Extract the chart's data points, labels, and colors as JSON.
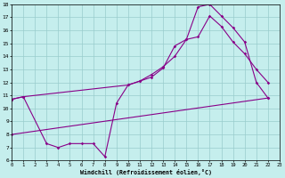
{
  "bg_color": "#c5eeed",
  "line_color": "#880088",
  "grid_color": "#99cccc",
  "xlabel": "Windchill (Refroidissement éolien,°C)",
  "xlim": [
    0,
    23
  ],
  "ylim": [
    6,
    18
  ],
  "line1_x": [
    0,
    1,
    3,
    4,
    5,
    6,
    7,
    8,
    9,
    10,
    11,
    12,
    13,
    14,
    15,
    16,
    17,
    18,
    19,
    20,
    21,
    22
  ],
  "line1_y": [
    10.7,
    10.9,
    7.3,
    7.0,
    7.3,
    7.3,
    7.3,
    6.3,
    10.4,
    11.8,
    12.1,
    12.4,
    13.1,
    14.8,
    15.3,
    17.8,
    18.0,
    17.1,
    16.2,
    15.1,
    12.0,
    10.8
  ],
  "line2_x": [
    0,
    1,
    10,
    11,
    12,
    13,
    14,
    15,
    16,
    17,
    18,
    19,
    20,
    21,
    22
  ],
  "line2_y": [
    10.7,
    10.9,
    11.8,
    12.1,
    12.6,
    13.2,
    14.0,
    15.3,
    15.5,
    17.1,
    16.3,
    15.1,
    14.2,
    13.0,
    12.0
  ],
  "line3_x": [
    0,
    22
  ],
  "line3_y": [
    8.0,
    10.8
  ],
  "xtick_fontsize": 4.0,
  "ytick_fontsize": 4.5,
  "xlabel_fontsize": 4.8,
  "marker_size": 1.8,
  "line_width": 0.8
}
